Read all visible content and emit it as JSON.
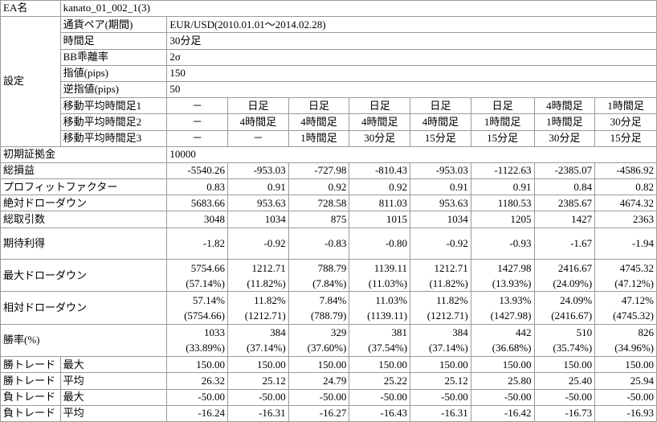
{
  "header": {
    "ea_label": "EA名",
    "ea_value": "kanato_01_002_1(3)"
  },
  "settings": {
    "label": "設定",
    "rows": [
      {
        "k": "通貨ペア(期間)",
        "v": "EUR/USD(2010.01.01～2014.02.28)"
      },
      {
        "k": "時間足",
        "v": "30分足"
      },
      {
        "k": "BB乖離率",
        "v": "2σ"
      },
      {
        "k": "指値(pips)",
        "v": "150"
      },
      {
        "k": "逆指値(pips)",
        "v": "50"
      }
    ],
    "ma_rows": [
      {
        "k": "移動平均時間足1",
        "cols": [
          "－",
          "日足",
          "日足",
          "日足",
          "日足",
          "日足",
          "4時間足",
          "1時間足"
        ]
      },
      {
        "k": "移動平均時間足2",
        "cols": [
          "－",
          "4時間足",
          "4時間足",
          "4時間足",
          "4時間足",
          "1時間足",
          "1時間足",
          "30分足"
        ]
      },
      {
        "k": "移動平均時間足3",
        "cols": [
          "－",
          "－",
          "1時間足",
          "30分足",
          "15分足",
          "15分足",
          "30分足",
          "15分足"
        ]
      }
    ]
  },
  "initial_margin": {
    "label": "初期証拠金",
    "value": "10000"
  },
  "results": [
    {
      "label": "総損益",
      "cols": [
        "-5540.26",
        "-953.03",
        "-727.98",
        "-810.43",
        "-953.03",
        "-1122.63",
        "-2385.07",
        "-4586.92"
      ]
    },
    {
      "label": "プロフィットファクター",
      "cols": [
        "0.83",
        "0.91",
        "0.92",
        "0.92",
        "0.91",
        "0.91",
        "0.84",
        "0.82"
      ]
    },
    {
      "label": "絶対ドローダウン",
      "cols": [
        "5683.66",
        "953.63",
        "728.58",
        "811.03",
        "953.63",
        "1180.53",
        "2385.67",
        "4674.32"
      ]
    },
    {
      "label": "総取引数",
      "cols": [
        "3048",
        "1034",
        "875",
        "1015",
        "1034",
        "1205",
        "1427",
        "2363"
      ]
    },
    {
      "label": "期待利得",
      "cols": [
        "-1.82",
        "-0.92",
        "-0.83",
        "-0.80",
        "-0.92",
        "-0.93",
        "-1.67",
        "-1.94"
      ]
    }
  ],
  "max_drawdown": {
    "label": "最大ドローダウン",
    "line1": [
      "5754.66",
      "1212.71",
      "788.79",
      "1139.11",
      "1212.71",
      "1427.98",
      "2416.67",
      "4745.32"
    ],
    "line2": [
      "(57.14%)",
      "(11.82%)",
      "(7.84%)",
      "(11.03%)",
      "(11.82%)",
      "(13.93%)",
      "(24.09%)",
      "(47.12%)"
    ]
  },
  "relative_drawdown": {
    "label": "相対ドローダウン",
    "line1": [
      "57.14%",
      "11.82%",
      "7.84%",
      "11.03%",
      "11.82%",
      "13.93%",
      "24.09%",
      "47.12%"
    ],
    "line2": [
      "(5754.66)",
      "(1212.71)",
      "(788.79)",
      "(1139.11)",
      "(1212.71)",
      "(1427.98)",
      "(2416.67)",
      "(4745.32)"
    ]
  },
  "win_rate": {
    "label": "勝率(%)",
    "line1": [
      "1033",
      "384",
      "329",
      "381",
      "384",
      "442",
      "510",
      "826"
    ],
    "line2": [
      "(33.89%)",
      "(37.14%)",
      "(37.60%)",
      "(37.54%)",
      "(37.14%)",
      "(36.68%)",
      "(35.74%)",
      "(34.96%)"
    ]
  },
  "trades": [
    {
      "a": "勝トレード",
      "b": "最大",
      "cols": [
        "150.00",
        "150.00",
        "150.00",
        "150.00",
        "150.00",
        "150.00",
        "150.00",
        "150.00"
      ]
    },
    {
      "a": "勝トレード",
      "b": "平均",
      "cols": [
        "26.32",
        "25.12",
        "24.79",
        "25.22",
        "25.12",
        "25.80",
        "25.40",
        "25.94"
      ]
    },
    {
      "a": "負トレード",
      "b": "最大",
      "cols": [
        "-50.00",
        "-50.00",
        "-50.00",
        "-50.00",
        "-50.00",
        "-50.00",
        "-50.00",
        "-50.00"
      ]
    },
    {
      "a": "負トレード",
      "b": "平均",
      "cols": [
        "-16.24",
        "-16.31",
        "-16.27",
        "-16.43",
        "-16.31",
        "-16.42",
        "-16.73",
        "-16.93"
      ]
    }
  ]
}
